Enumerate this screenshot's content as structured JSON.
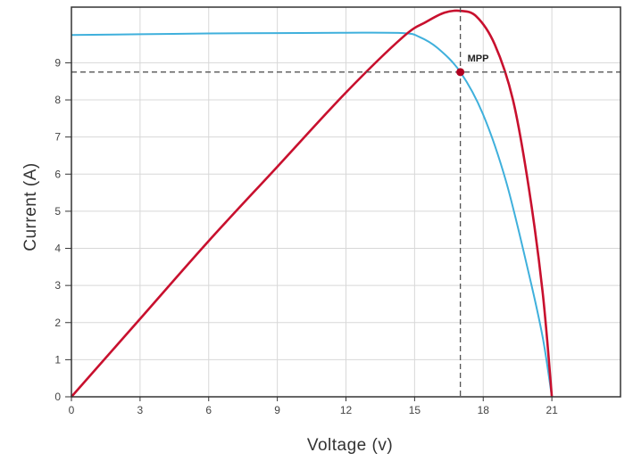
{
  "chart_data": {
    "type": "line",
    "xlabel": "Voltage (v)",
    "ylabel": "Current (A)",
    "xlim": [
      0,
      24
    ],
    "ylim": [
      0,
      10.5
    ],
    "xticks": [
      0,
      3,
      6,
      9,
      12,
      15,
      18,
      21
    ],
    "xtick_labels": [
      "0",
      "3",
      "6",
      "9",
      "12",
      "15",
      "18",
      "21"
    ],
    "yticks": [
      0,
      1,
      2,
      3,
      4,
      5,
      6,
      7,
      8,
      9
    ],
    "ytick_labels": [
      "0",
      "1",
      "2",
      "3",
      "4",
      "5",
      "6",
      "7",
      "8",
      "9"
    ],
    "grid": true,
    "series": [
      {
        "color": "#3fb0dc",
        "x": [
          0,
          3,
          6,
          9,
          12,
          14.5,
          15.2,
          16,
          17,
          18,
          19,
          20,
          20.6,
          21
        ],
        "y": [
          9.75,
          9.77,
          9.79,
          9.8,
          9.81,
          9.8,
          9.7,
          9.4,
          8.75,
          7.6,
          5.8,
          3.3,
          1.6,
          0
        ]
      },
      {
        "color": "#c8102e",
        "x": [
          0,
          3,
          6,
          9,
          12,
          14.5,
          15.5,
          16.3,
          17,
          17.7,
          18.5,
          19.3,
          20,
          20.6,
          21
        ],
        "y": [
          0,
          2.1,
          4.2,
          6.2,
          8.2,
          9.7,
          10.1,
          10.35,
          10.4,
          10.25,
          9.5,
          8.0,
          5.6,
          2.8,
          0
        ]
      }
    ],
    "mpp": {
      "x": 17,
      "y": 8.75,
      "label": "MPP",
      "color": "#b00020"
    },
    "colors": {
      "frame": "#333333",
      "grid": "#d8d8d8",
      "guide": "#555555"
    }
  }
}
